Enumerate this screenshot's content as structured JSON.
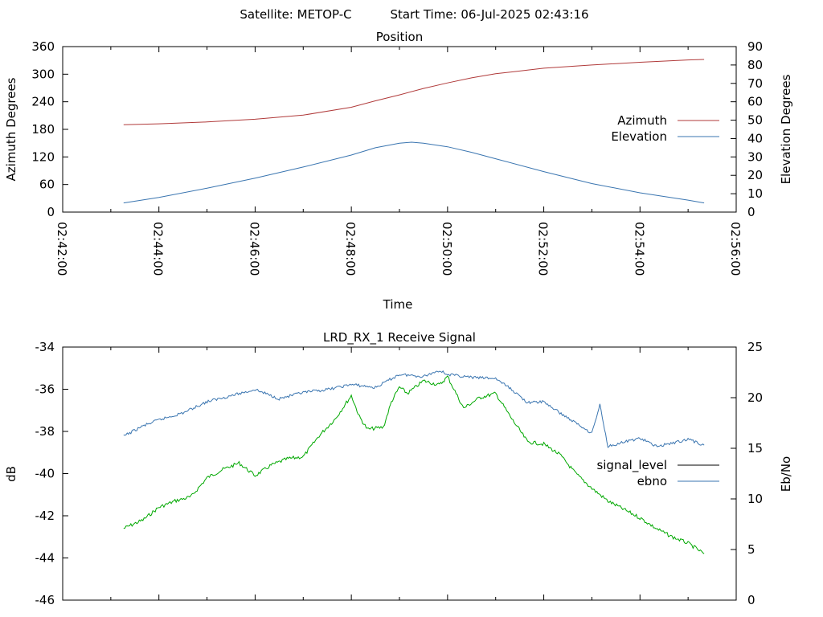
{
  "header": {
    "satellite_label": "Satellite: METOP-C",
    "start_time_label": "Start Time: 06-Jul-2025 02:43:16"
  },
  "chart_data": [
    {
      "type": "line",
      "title": "Position",
      "xlabel": "Time",
      "ylabel": "Azimuth Degrees",
      "y2label": "Elevation Degrees",
      "xlim": [
        "02:42:00",
        "02:56:00"
      ],
      "x_tick_labels": [
        "02:42:00",
        "02:44:00",
        "02:46:00",
        "02:48:00",
        "02:50:00",
        "02:52:00",
        "02:54:00",
        "02:56:00"
      ],
      "ylim": [
        0,
        360
      ],
      "y_ticks": [
        0,
        60,
        120,
        180,
        240,
        300,
        360
      ],
      "y2lim": [
        0,
        90
      ],
      "y2_ticks": [
        0,
        10,
        20,
        30,
        40,
        50,
        60,
        70,
        80,
        90
      ],
      "legend_position": "right",
      "series": [
        {
          "name": "Azimuth",
          "axis": "left",
          "color": "#b03a3a",
          "x": [
            "02:43:16",
            "02:44:00",
            "02:45:00",
            "02:46:00",
            "02:47:00",
            "02:48:00",
            "02:48:30",
            "02:49:00",
            "02:49:30",
            "02:50:00",
            "02:50:30",
            "02:51:00",
            "02:52:00",
            "02:53:00",
            "02:54:00",
            "02:55:00",
            "02:55:20"
          ],
          "values": [
            190,
            192,
            196,
            202,
            211,
            228,
            242,
            255,
            269,
            281,
            292,
            301,
            313,
            320,
            326,
            331,
            332
          ]
        },
        {
          "name": "Elevation",
          "axis": "right",
          "color": "#3a75b0",
          "x": [
            "02:43:16",
            "02:44:00",
            "02:45:00",
            "02:46:00",
            "02:47:00",
            "02:48:00",
            "02:48:30",
            "02:49:00",
            "02:49:15",
            "02:49:30",
            "02:50:00",
            "02:50:30",
            "02:51:00",
            "02:52:00",
            "02:53:00",
            "02:54:00",
            "02:55:00",
            "02:55:20"
          ],
          "values": [
            5,
            8,
            13,
            18.5,
            24.5,
            31,
            35,
            37.5,
            38,
            37.5,
            35.5,
            32.5,
            29,
            22,
            15.5,
            10.5,
            6.5,
            5
          ]
        }
      ]
    },
    {
      "type": "line",
      "title": "LRD_RX_1 Receive Signal",
      "xlabel": "",
      "ylabel": "dB",
      "y2label": "Eb/No",
      "ylim": [
        -46,
        -34
      ],
      "y_ticks": [
        -46,
        -44,
        -42,
        -40,
        -38,
        -36,
        -34
      ],
      "y2lim": [
        0,
        25
      ],
      "y2_ticks": [
        0,
        5,
        10,
        15,
        20,
        25
      ],
      "legend_position": "right",
      "series": [
        {
          "name": "signal_level",
          "axis": "left",
          "color": "#00a800",
          "x": [
            "02:43:16",
            "02:43:40",
            "02:44:00",
            "02:44:20",
            "02:44:40",
            "02:45:00",
            "02:45:20",
            "02:45:40",
            "02:46:00",
            "02:46:20",
            "02:46:40",
            "02:47:00",
            "02:47:20",
            "02:47:40",
            "02:48:00",
            "02:48:10",
            "02:48:20",
            "02:48:40",
            "02:48:50",
            "02:49:00",
            "02:49:10",
            "02:49:30",
            "02:49:50",
            "02:50:00",
            "02:50:20",
            "02:50:40",
            "02:51:00",
            "02:51:20",
            "02:51:40",
            "02:52:00",
            "02:52:20",
            "02:52:40",
            "02:53:00",
            "02:53:20",
            "02:53:40",
            "02:54:00",
            "02:54:20",
            "02:54:40",
            "02:55:00",
            "02:55:20"
          ],
          "values": [
            -42.6,
            -42.2,
            -41.6,
            -41.3,
            -41.1,
            -40.2,
            -39.8,
            -39.5,
            -40.1,
            -39.6,
            -39.3,
            -39.2,
            -38.2,
            -37.4,
            -36.3,
            -37.3,
            -37.9,
            -37.8,
            -36.6,
            -35.9,
            -36.2,
            -35.6,
            -35.8,
            -35.4,
            -36.9,
            -36.4,
            -36.2,
            -37.4,
            -38.5,
            -38.6,
            -39.1,
            -40.0,
            -40.7,
            -41.3,
            -41.7,
            -42.1,
            -42.6,
            -43.0,
            -43.3,
            -43.8
          ]
        },
        {
          "name": "ebno",
          "axis": "right",
          "color": "#3a75b0",
          "x": [
            "02:43:16",
            "02:43:40",
            "02:44:00",
            "02:44:30",
            "02:45:00",
            "02:45:30",
            "02:46:00",
            "02:46:30",
            "02:47:00",
            "02:47:30",
            "02:48:00",
            "02:48:30",
            "02:49:00",
            "02:49:30",
            "02:49:50",
            "02:50:00",
            "02:50:30",
            "02:51:00",
            "02:51:20",
            "02:51:40",
            "02:52:00",
            "02:52:20",
            "02:52:40",
            "02:53:00",
            "02:53:10",
            "02:53:20",
            "02:53:40",
            "02:54:00",
            "02:54:20",
            "02:54:40",
            "02:55:00",
            "02:55:20"
          ],
          "values": [
            16.2,
            17.2,
            17.8,
            18.5,
            19.6,
            20.2,
            20.8,
            19.9,
            20.5,
            20.8,
            21.3,
            21.0,
            22.3,
            22.1,
            22.7,
            22.3,
            22.0,
            21.9,
            20.8,
            19.5,
            19.6,
            18.5,
            17.5,
            16.5,
            19.3,
            15.2,
            15.6,
            16.0,
            15.2,
            15.5,
            15.9,
            15.3
          ]
        }
      ]
    }
  ]
}
